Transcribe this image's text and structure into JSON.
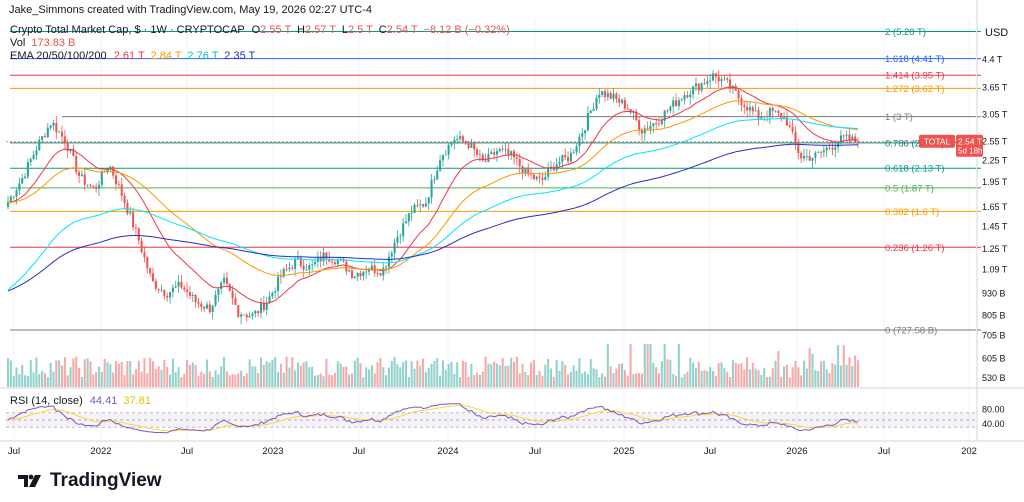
{
  "header": {
    "created_by": "Jake_Simmons created with TradingView.com, May 19, 2026 02:27 UTC-4",
    "symbol": "Crypto Total Market Cap, $ · 1W · CRYPTOCAP",
    "ohlc": [
      {
        "label": "O",
        "value": "2.55 T"
      },
      {
        "label": "H",
        "value": "2.57 T"
      },
      {
        "label": "L",
        "value": "2.5 T"
      },
      {
        "label": "C",
        "value": "2.54 T"
      }
    ],
    "change": "−8.12 B (−0.32%)",
    "vol_label": "Vol",
    "vol_value": "173.83 B",
    "ema_label": "EMA 20/50/100/200",
    "ema_values": [
      "2.61 T",
      "2.84 T",
      "2.76 T",
      "2.35 T"
    ],
    "rsi_label": "RSI (14, close)",
    "rsi_values": [
      "44.41",
      "37.81"
    ]
  },
  "colors": {
    "up": "#26a69a",
    "down": "#ef5350",
    "ema20": "#f23645",
    "ema50": "#ff9800",
    "ema100": "#00e5ff",
    "ema200": "#2a2ebd",
    "rsi": "#7e57c2",
    "rsi_ma": "#fdd835"
  },
  "price_axis": {
    "unit": "USD",
    "ticks": [
      "4.4 T",
      "3.65 T",
      "3.05 T",
      "2.55 T",
      "2.25 T",
      "1.95 T",
      "1.65 T",
      "1.45 T",
      "1.25 T",
      "1.09 T",
      "930 B",
      "805 B",
      "705 B",
      "605 B",
      "530 B"
    ]
  },
  "rsi_axis": {
    "ticks": [
      "80.00",
      "40.00"
    ]
  },
  "time_axis": {
    "ticks": [
      "Jul",
      "2022",
      "Jul",
      "2023",
      "Jul",
      "2024",
      "Jul",
      "2025",
      "Jul",
      "2026",
      "Jul",
      "202"
    ]
  },
  "price_tag": {
    "label": "TOTAL",
    "value": "2.54 T",
    "countdown": "5d 18h"
  },
  "branding": {
    "name": "TradingView"
  },
  "chart_data": {
    "type": "candlestick",
    "title": "Crypto Total Market Cap, $ · 1W · CRYPTOCAP",
    "y_scale": "log",
    "fib_levels": [
      {
        "ratio": "2",
        "label": "2 (5.28 T)",
        "value": 5.28,
        "color": "#089981"
      },
      {
        "ratio": "1.618",
        "label": "1.618 (4.41 T)",
        "value": 4.41,
        "color": "#2962ff"
      },
      {
        "ratio": "1.414",
        "label": "1.414 (3.95 T)",
        "value": 3.95,
        "color": "#f23645"
      },
      {
        "ratio": "1.272",
        "label": "1.272 (3.62 T)",
        "value": 3.62,
        "color": "#ff9800"
      },
      {
        "ratio": "1",
        "label": "1 (3 T)",
        "value": 3.0,
        "color": "#787b86"
      },
      {
        "ratio": "0.786",
        "label": "0.786 (2.52 T)",
        "value": 2.52,
        "color": "#00897b"
      },
      {
        "ratio": "0.618",
        "label": "0.618 (2.13 T)",
        "value": 2.13,
        "color": "#089981"
      },
      {
        "ratio": "0.5",
        "label": "0.5 (1.87 T)",
        "value": 1.87,
        "color": "#4caf50"
      },
      {
        "ratio": "0.382",
        "label": "0.382 (1.6 T)",
        "value": 1.6,
        "color": "#ff9800"
      },
      {
        "ratio": "0.236",
        "label": "0.236 (1.26 T)",
        "value": 1.26,
        "color": "#f23645"
      },
      {
        "ratio": "0",
        "label": "0 (727.58 B)",
        "value": 0.72758,
        "color": "#787b86"
      }
    ],
    "anchors_close_T": [
      1.7,
      2.0,
      2.45,
      2.9,
      2.55,
      2.0,
      1.85,
      2.2,
      1.75,
      1.35,
      1.0,
      0.93,
      0.98,
      0.88,
      0.84,
      1.0,
      0.82,
      0.8,
      0.88,
      1.05,
      1.15,
      1.1,
      1.2,
      1.15,
      1.05,
      1.1,
      1.08,
      1.35,
      1.6,
      1.7,
      2.3,
      2.6,
      2.5,
      2.2,
      2.4,
      2.3,
      2.05,
      1.95,
      2.2,
      2.3,
      2.8,
      3.55,
      3.4,
      3.2,
      2.75,
      2.9,
      3.2,
      3.5,
      3.7,
      3.95,
      3.7,
      3.3,
      3.0,
      3.1,
      2.95,
      2.3,
      2.3,
      2.45,
      2.6,
      2.54
    ],
    "volume_range_B": [
      40,
      200
    ],
    "rsi": {
      "overbought": 70,
      "oversold": 30,
      "last": 44.41,
      "ma_last": 37.81
    }
  }
}
